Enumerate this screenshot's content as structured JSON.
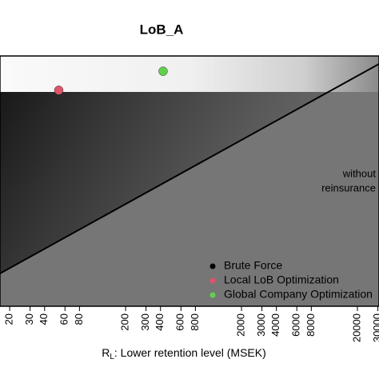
{
  "chart_data": {
    "type": "scatter",
    "title": "LoB_A",
    "x_label": {
      "symbol": "R",
      "subscript": "L",
      "text": ": Lower retention level (MSEK)"
    },
    "annotation": [
      "without",
      "reinsurance"
    ],
    "log_x": true,
    "xlim": [
      16.5,
      30700
    ],
    "ylim": [
      0,
      1
    ],
    "xticks": [
      20,
      30,
      40,
      60,
      80,
      200,
      300,
      400,
      600,
      800,
      2000,
      3000,
      4000,
      6000,
      8000,
      20000,
      30000
    ],
    "legend": "bottom-right",
    "series": [
      {
        "name": "Brute Force",
        "color": "#000000",
        "x": [],
        "values": []
      },
      {
        "name": "Local LoB Optimization",
        "color": "#df536b",
        "x": [
          53
        ],
        "values": [
          0.863
        ]
      },
      {
        "name": "Global Company Optimization",
        "color": "#61d04f",
        "x": [
          421
        ],
        "values": [
          0.939
        ]
      }
    ]
  }
}
